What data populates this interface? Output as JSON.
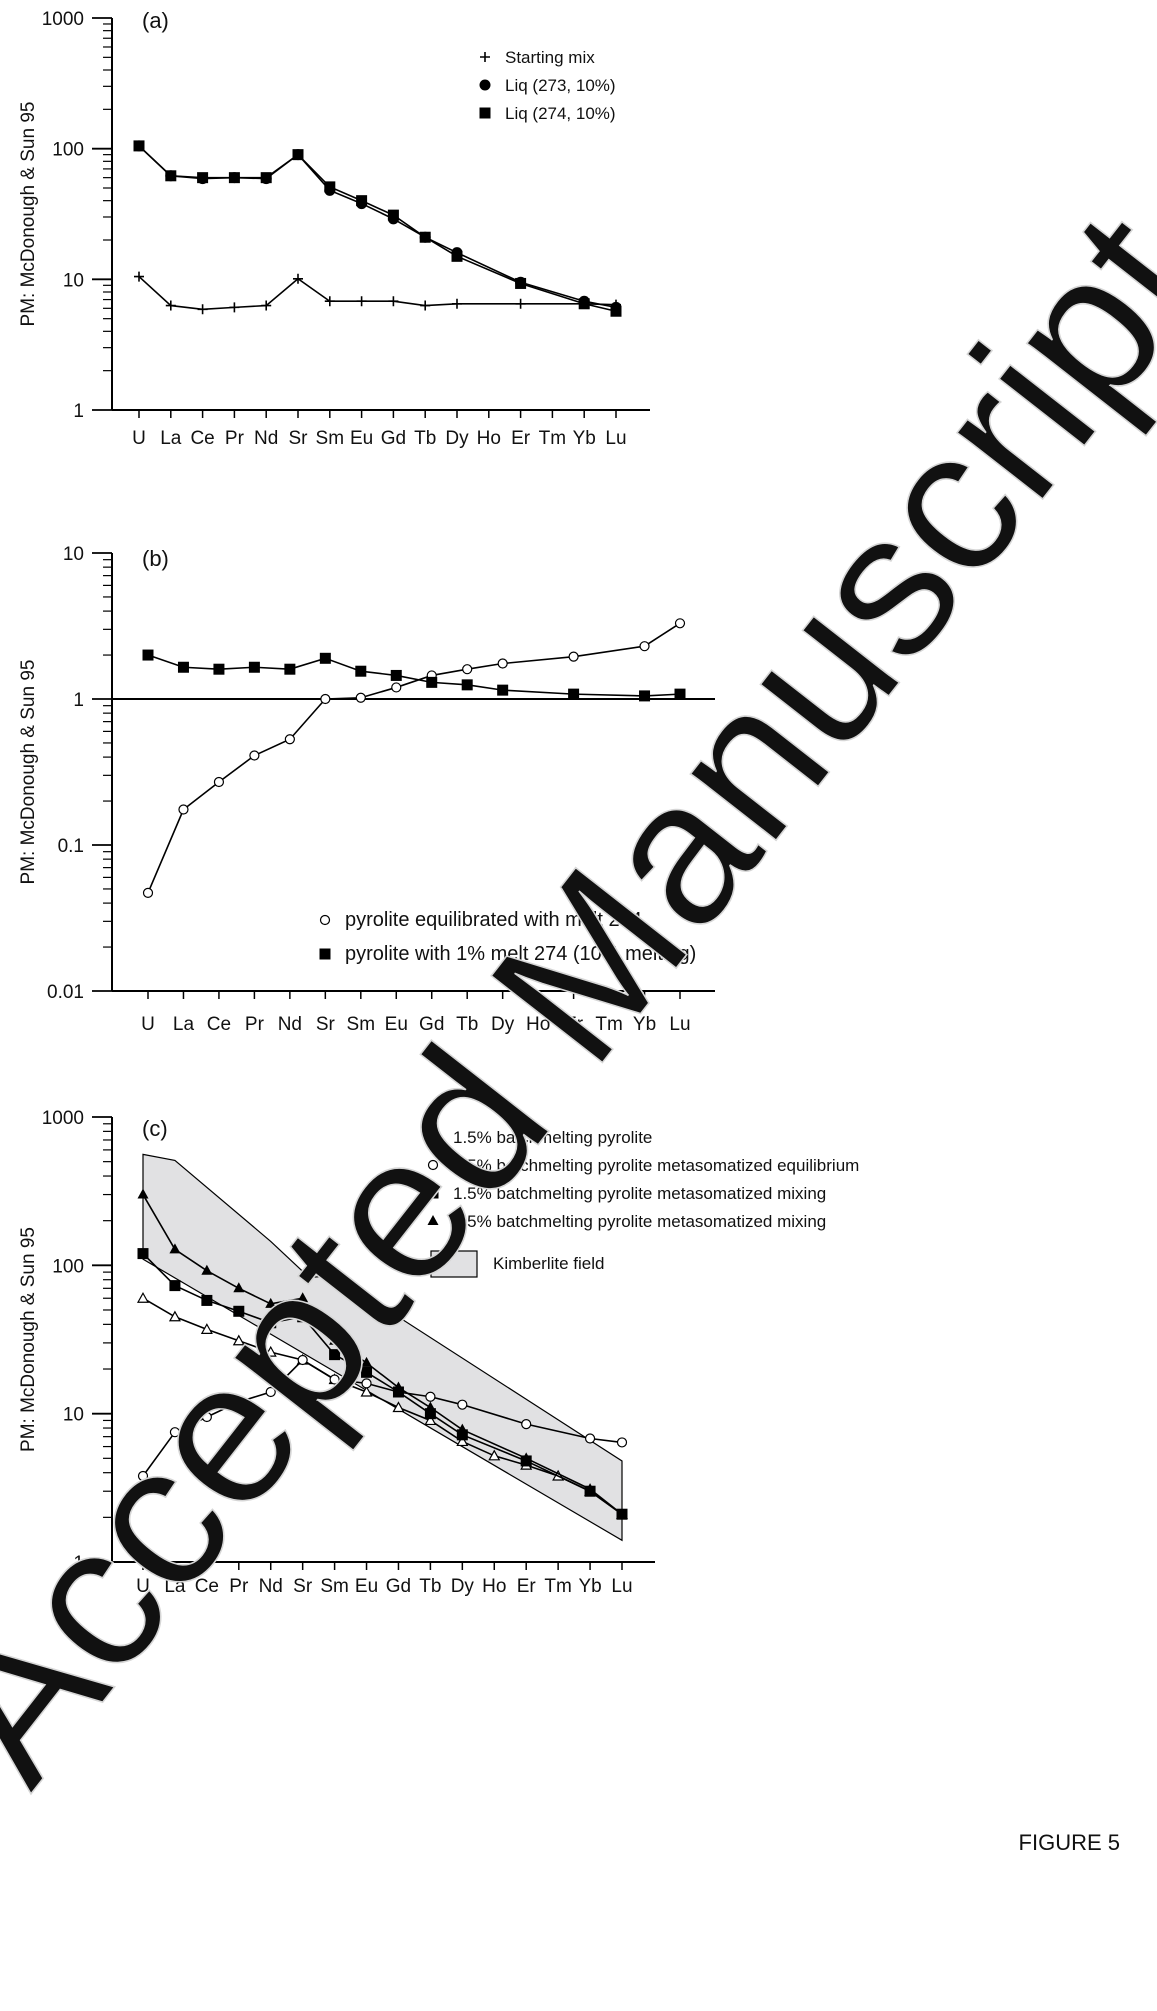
{
  "figure_label": "FIGURE 5",
  "watermark": "Accepted Manuscript",
  "chart_data": [
    {
      "type": "line",
      "panel_label": "(a)",
      "ylabel": "PM: McDonough & Sun 95",
      "yscale": "log",
      "ylim": [
        1,
        1000
      ],
      "yticks": [
        "1",
        "10",
        "100",
        "1000"
      ],
      "categories": [
        "U",
        "La",
        "Ce",
        "Pr",
        "Nd",
        "Sr",
        "Sm",
        "Eu",
        "Gd",
        "Tb",
        "Dy",
        "Ho",
        "Er",
        "Tm",
        "Yb",
        "Lu"
      ],
      "legend_position": "top-right",
      "series": [
        {
          "name": "Starting mix",
          "marker": "plus",
          "values": [
            10.5,
            6.3,
            5.9,
            6.1,
            6.3,
            10.1,
            6.8,
            6.8,
            6.8,
            6.3,
            6.5,
            null,
            6.5,
            null,
            6.5,
            6.4
          ]
        },
        {
          "name": "Liq (273, 10%)",
          "marker": "circle-filled",
          "values": [
            105,
            62,
            59,
            60,
            59,
            90,
            48,
            38,
            29,
            21,
            16,
            null,
            9.5,
            null,
            6.8,
            6.1
          ]
        },
        {
          "name": "Liq (274, 10%)",
          "marker": "square-filled",
          "values": [
            105,
            62,
            60,
            60,
            60,
            90,
            51,
            40,
            31,
            21,
            15,
            null,
            9.3,
            null,
            6.5,
            5.7
          ]
        }
      ]
    },
    {
      "type": "line",
      "panel_label": "(b)",
      "ylabel": "PM: McDonough & Sun 95",
      "yscale": "log",
      "ylim": [
        0.01,
        10
      ],
      "yticks": [
        "0.01",
        "0.1",
        "1",
        "10"
      ],
      "reference_line": 1,
      "categories": [
        "U",
        "La",
        "Ce",
        "Pr",
        "Nd",
        "Sr",
        "Sm",
        "Eu",
        "Gd",
        "Tb",
        "Dy",
        "Ho",
        "Er",
        "Tm",
        "Yb",
        "Lu"
      ],
      "legend_position": "bottom-right",
      "series": [
        {
          "name": "pyrolite equilibrated with melt 274",
          "marker": "circle-open",
          "values": [
            0.047,
            0.175,
            0.27,
            0.41,
            0.53,
            1.0,
            1.02,
            1.2,
            1.45,
            1.6,
            1.75,
            null,
            1.95,
            null,
            2.3,
            3.3
          ]
        },
        {
          "name": "pyrolite with 1% melt 274 (10% melting)",
          "marker": "square-filled",
          "values": [
            2.0,
            1.65,
            1.6,
            1.65,
            1.6,
            1.9,
            1.55,
            1.45,
            1.3,
            1.25,
            1.15,
            null,
            1.08,
            null,
            1.05,
            1.08
          ]
        }
      ]
    },
    {
      "type": "line",
      "panel_label": "(c)",
      "ylabel": "PM: McDonough & Sun 95",
      "yscale": "log",
      "ylim": [
        1,
        1000
      ],
      "yticks": [
        "1",
        "10",
        "100",
        "1000"
      ],
      "categories": [
        "U",
        "La",
        "Ce",
        "Pr",
        "Nd",
        "Sr",
        "Sm",
        "Eu",
        "Gd",
        "Tb",
        "Dy",
        "Ho",
        "Er",
        "Tm",
        "Yb",
        "Lu"
      ],
      "legend_position": "top-right",
      "series": [
        {
          "name": "1.5% batchmelting pyrolite",
          "marker": "triangle-open",
          "values": [
            60,
            45,
            37,
            31,
            26,
            23,
            17,
            14,
            11,
            9,
            6.5,
            5.2,
            4.5,
            3.8,
            3.0,
            2.1
          ]
        },
        {
          "name": "1.5% batchmelting pyrolite metasomatized equilibrium",
          "marker": "circle-open",
          "values": [
            3.8,
            7.5,
            9.5,
            12,
            14,
            23,
            17,
            16,
            14,
            13,
            11.5,
            null,
            8.5,
            null,
            6.8,
            6.4
          ]
        },
        {
          "name": "1.5% batchmelting pyrolite metasomatized mixing",
          "marker": "square-filled",
          "values": [
            120,
            73,
            58,
            49,
            41,
            45,
            25,
            19,
            14,
            10,
            7.2,
            null,
            4.8,
            null,
            3.0,
            2.1
          ]
        },
        {
          "name": "0.5% batchmelting pyrolite metasomatized mixing",
          "marker": "triangle-filled",
          "values": [
            300,
            128,
            92,
            70,
            55,
            60,
            31,
            22,
            15,
            11,
            7.8,
            null,
            5.0,
            null,
            3.1,
            2.1
          ]
        }
      ],
      "field": {
        "name": "Kimberlite field",
        "upper": [
          [
            0,
            560
          ],
          [
            1,
            510
          ],
          [
            4,
            145
          ],
          [
            5.2,
            83
          ],
          [
            6,
            85
          ],
          [
            15,
            4.8
          ]
        ],
        "lower": [
          [
            15,
            1.4
          ],
          [
            0,
            110
          ]
        ]
      }
    }
  ]
}
